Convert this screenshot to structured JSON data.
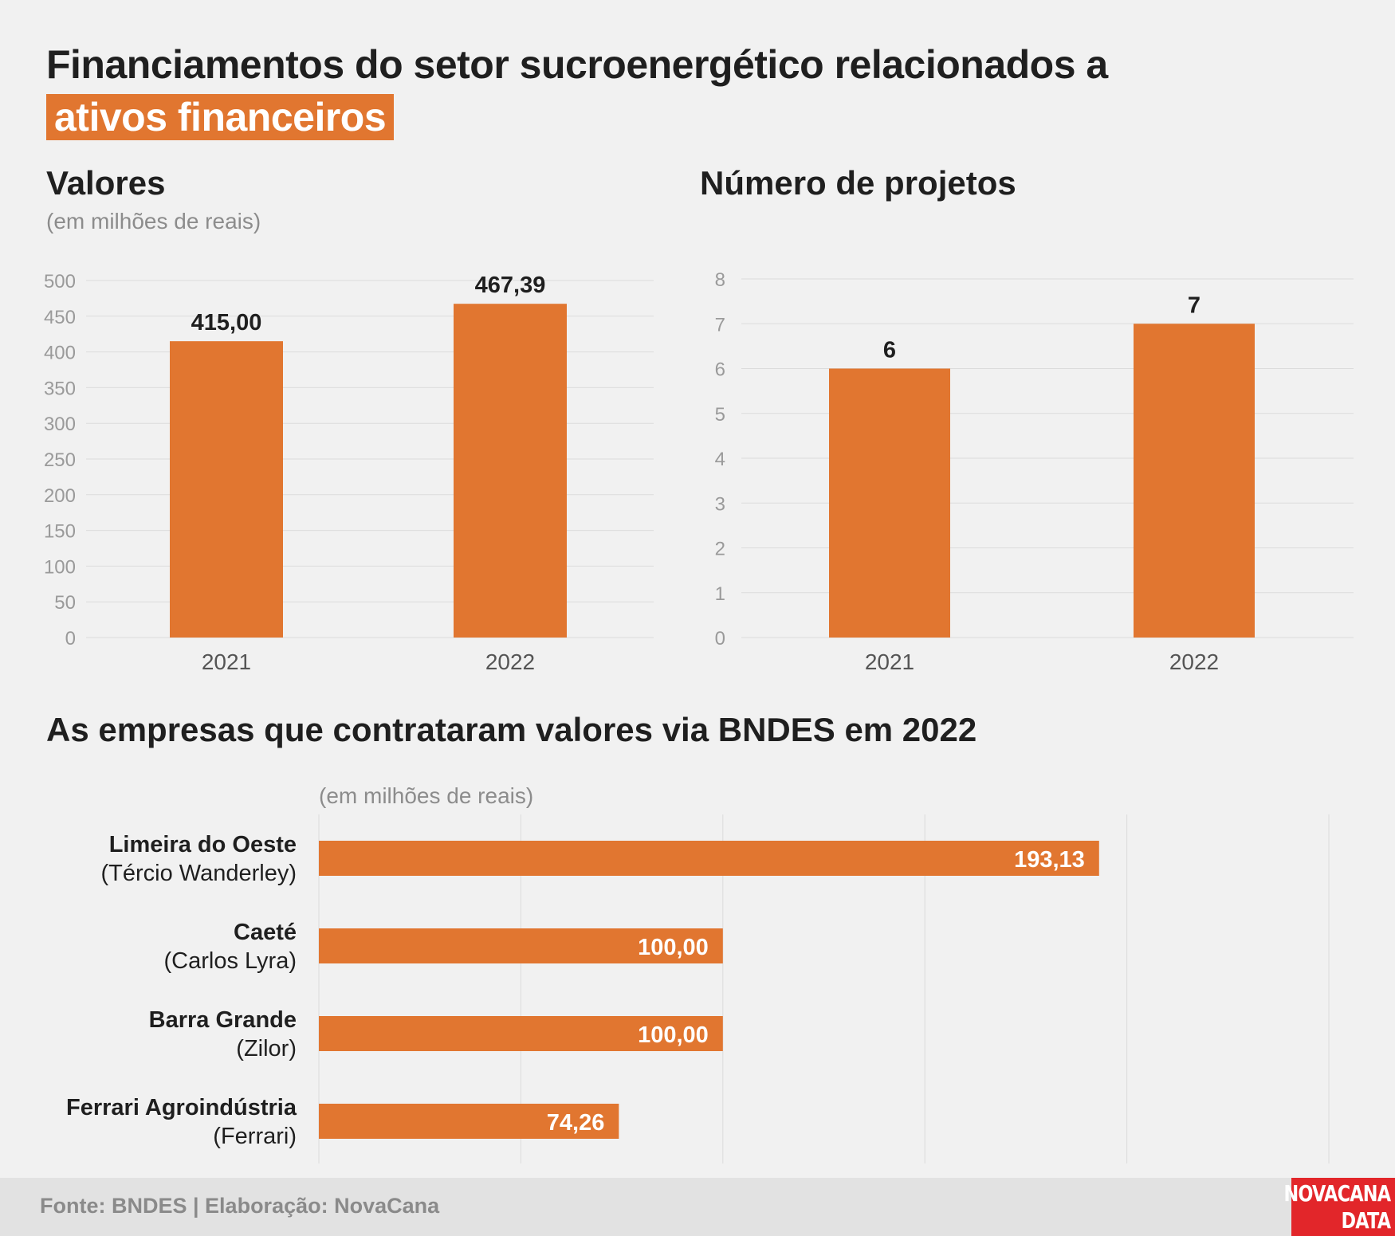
{
  "title": {
    "line1": "Financiamentos do setor sucroenergético relacionados a",
    "highlight": "ativos financeiros"
  },
  "colors": {
    "bar": "#e17630",
    "highlight": "#e17630",
    "grid": "#dcdcdc",
    "logo": "#e2262a"
  },
  "values_panel": {
    "title": "Valores",
    "units": "(em milhões de reais)"
  },
  "projects_panel": {
    "title": "Número de projetos"
  },
  "companies_panel": {
    "title": "As empresas que contrataram valores via BNDES em 2022",
    "units": "(em milhões de reais)"
  },
  "chart_data": [
    {
      "type": "bar",
      "title": "Valores",
      "subtitle": "(em milhões de reais)",
      "categories": [
        "2021",
        "2022"
      ],
      "values": [
        415.0,
        467.39
      ],
      "labels": [
        "415,00",
        "467,39"
      ],
      "ylim": [
        0,
        500
      ],
      "yticks": [
        0,
        50,
        100,
        150,
        200,
        250,
        300,
        350,
        400,
        450,
        500
      ],
      "grid": true
    },
    {
      "type": "bar",
      "title": "Número de projetos",
      "categories": [
        "2021",
        "2022"
      ],
      "values": [
        6,
        7
      ],
      "labels": [
        "6",
        "7"
      ],
      "ylim": [
        0,
        8
      ],
      "yticks": [
        0,
        1,
        2,
        3,
        4,
        5,
        6,
        7,
        8
      ],
      "grid": true
    },
    {
      "type": "bar",
      "orientation": "horizontal",
      "title": "As empresas que contrataram valores via BNDES em 2022",
      "subtitle": "(em milhões de reais)",
      "categories": [
        "Limeira do Oeste",
        "Caeté",
        "Barra Grande",
        "Ferrari Agroindústria"
      ],
      "groups": [
        "(Tércio Wanderley)",
        "(Carlos Lyra)",
        "(Zilor)",
        "(Ferrari)"
      ],
      "values": [
        193.13,
        100.0,
        100.0,
        74.26
      ],
      "labels": [
        "193,13",
        "100,00",
        "100,00",
        "74,26"
      ],
      "xlim": [
        0,
        250
      ],
      "grid": true
    }
  ],
  "footer": {
    "source": "Fonte: BNDES | Elaboração: NovaCana",
    "logo_line1": "NOVACANA",
    "logo_line2": "DATA"
  }
}
